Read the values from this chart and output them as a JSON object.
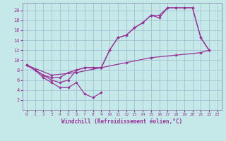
{
  "xlabel": "Windchill (Refroidissement éolien,°C)",
  "xlim": [
    -0.5,
    23.5
  ],
  "ylim": [
    0,
    21.5
  ],
  "xticks": [
    0,
    1,
    2,
    3,
    4,
    5,
    6,
    7,
    8,
    9,
    10,
    11,
    12,
    13,
    14,
    15,
    16,
    17,
    18,
    19,
    20,
    21,
    22,
    23
  ],
  "yticks": [
    2,
    4,
    6,
    8,
    10,
    12,
    14,
    16,
    18,
    20
  ],
  "bg_color": "#c5e8e8",
  "grid_color": "#a0b8cc",
  "line_color": "#993399",
  "line1_bottom": [
    [
      0,
      9
    ],
    [
      1,
      8
    ],
    [
      2,
      6.5
    ],
    [
      3,
      5.5
    ],
    [
      4,
      4.5
    ],
    [
      5,
      4.5
    ],
    [
      6,
      5.5
    ],
    [
      7,
      3.2
    ],
    [
      8,
      2.5
    ],
    [
      9,
      3.5
    ]
  ],
  "line2_upper": [
    [
      0,
      9
    ],
    [
      1,
      8
    ],
    [
      2,
      7
    ],
    [
      3,
      6
    ],
    [
      4,
      5.5
    ],
    [
      5,
      6
    ],
    [
      6,
      8
    ],
    [
      7,
      8.5
    ],
    [
      8,
      8.5
    ],
    [
      9,
      8.5
    ],
    [
      10,
      12
    ],
    [
      11,
      14.5
    ],
    [
      12,
      15
    ],
    [
      13,
      16.5
    ],
    [
      14,
      17.5
    ],
    [
      15,
      19
    ],
    [
      16,
      18.5
    ],
    [
      17,
      20.5
    ],
    [
      18,
      20.5
    ],
    [
      19,
      20.5
    ],
    [
      20,
      20.5
    ],
    [
      21,
      14.5
    ],
    [
      22,
      12
    ]
  ],
  "line3_mid": [
    [
      0,
      9
    ],
    [
      1,
      8
    ],
    [
      2,
      7
    ],
    [
      3,
      6.5
    ],
    [
      4,
      6.5
    ],
    [
      5,
      7.5
    ],
    [
      6,
      8
    ],
    [
      7,
      8.5
    ],
    [
      8,
      8.5
    ],
    [
      9,
      8.5
    ],
    [
      10,
      12
    ],
    [
      11,
      14.5
    ],
    [
      12,
      15
    ],
    [
      13,
      16.5
    ],
    [
      14,
      17.5
    ],
    [
      15,
      19
    ],
    [
      16,
      19
    ],
    [
      17,
      20.5
    ],
    [
      18,
      20.5
    ],
    [
      19,
      20.5
    ],
    [
      20,
      20.5
    ],
    [
      21,
      14.5
    ],
    [
      22,
      12
    ]
  ],
  "line4_diag": [
    [
      0,
      9
    ],
    [
      3,
      7
    ],
    [
      6,
      7.5
    ],
    [
      9,
      8.5
    ],
    [
      12,
      9.5
    ],
    [
      15,
      10.5
    ],
    [
      18,
      11
    ],
    [
      21,
      11.5
    ],
    [
      22,
      12
    ]
  ]
}
